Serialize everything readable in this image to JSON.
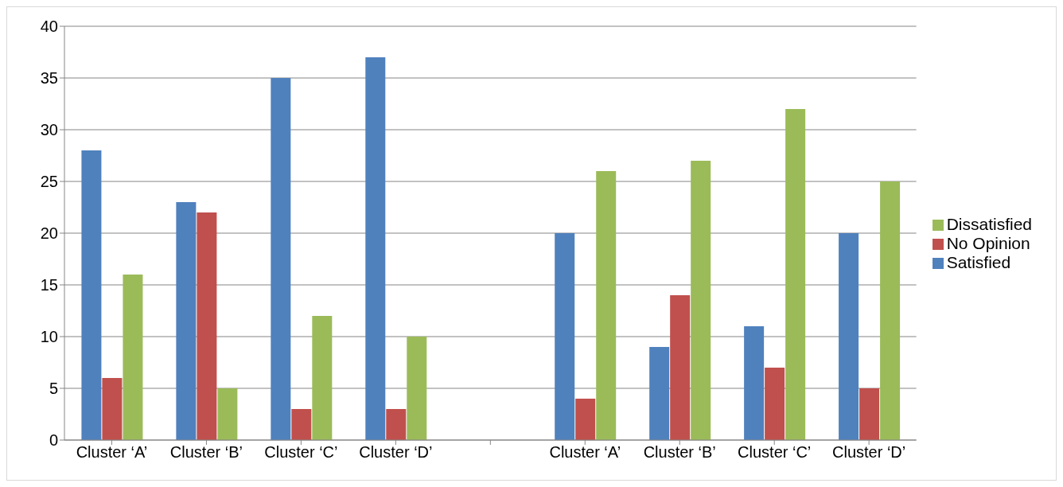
{
  "chart_data": {
    "type": "bar",
    "categories": [
      "Cluster ‘A’",
      "Cluster ‘B’",
      "Cluster ‘C’",
      "Cluster ‘D’",
      null,
      "Cluster ‘A’",
      "Cluster ‘B’",
      "Cluster ‘C’",
      "Cluster ‘D’"
    ],
    "series": [
      {
        "name": "Satisfied",
        "color": "#4f81bd",
        "values": [
          28,
          23,
          35,
          37,
          null,
          20,
          9,
          11,
          20
        ]
      },
      {
        "name": "No Opinion",
        "color": "#c0504d",
        "values": [
          6,
          22,
          3,
          3,
          null,
          4,
          14,
          7,
          5
        ]
      },
      {
        "name": "Dissatisfied",
        "color": "#9bbb59",
        "values": [
          16,
          5,
          12,
          10,
          null,
          26,
          27,
          32,
          25
        ]
      }
    ],
    "ylim": [
      0,
      40
    ],
    "yticks": [
      0,
      5,
      10,
      15,
      20,
      25,
      30,
      35,
      40
    ],
    "grid": "y",
    "legend": "right"
  }
}
